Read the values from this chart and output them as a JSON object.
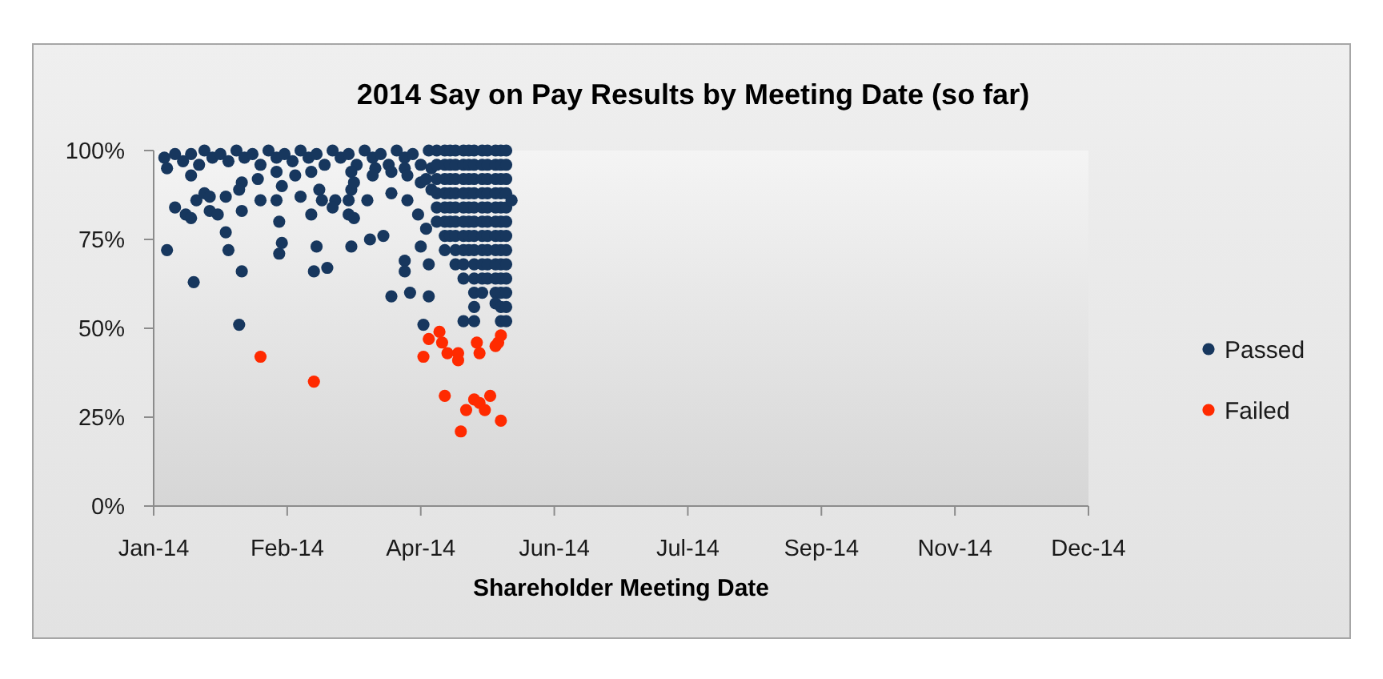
{
  "chart_data": {
    "type": "scatter",
    "title": "2014 Say on Pay Results by Meeting Date (so far)",
    "xlabel": "Shareholder Meeting Date",
    "xlim": [
      "2014-01-06",
      "2014-12-22"
    ],
    "xticks": [
      {
        "value": "2014-01-06",
        "label": "Jan-14"
      },
      {
        "value": "2014-02-25",
        "label": "Feb-14"
      },
      {
        "value": "2014-04-16",
        "label": "Apr-14"
      },
      {
        "value": "2014-06-05",
        "label": "Jun-14"
      },
      {
        "value": "2014-07-25",
        "label": "Jul-14"
      },
      {
        "value": "2014-09-13",
        "label": "Sep-14"
      },
      {
        "value": "2014-11-02",
        "label": "Nov-14"
      },
      {
        "value": "2014-12-22",
        "label": "Dec-14"
      }
    ],
    "ylim": [
      0,
      100
    ],
    "yticks": [
      {
        "value": 0,
        "label": "0%"
      },
      {
        "value": 25,
        "label": "25%"
      },
      {
        "value": 50,
        "label": "50%"
      },
      {
        "value": 75,
        "label": "75%"
      },
      {
        "value": 100,
        "label": "100%"
      }
    ],
    "legend": "right",
    "marker": "circle",
    "series": [
      {
        "name": "Passed",
        "color": "#17375e",
        "x": [
          "2014-01-10",
          "2014-01-11",
          "2014-01-14",
          "2014-01-17",
          "2014-01-20",
          "2014-01-23",
          "2014-01-25",
          "2014-01-28",
          "2014-01-31",
          "2014-02-03",
          "2014-02-06",
          "2014-02-09",
          "2014-02-12",
          "2014-02-15",
          "2014-02-18",
          "2014-02-21",
          "2014-02-24",
          "2014-02-27",
          "2014-03-02",
          "2014-03-05",
          "2014-03-08",
          "2014-03-11",
          "2014-03-14",
          "2014-03-17",
          "2014-03-20",
          "2014-03-23",
          "2014-03-26",
          "2014-03-29",
          "2014-04-01",
          "2014-04-04",
          "2014-04-07",
          "2014-04-10",
          "2014-04-13",
          "2014-04-16",
          "2014-04-19",
          "2014-02-21",
          "2014-02-28",
          "2014-03-06",
          "2014-03-21",
          "2014-03-30",
          "2014-04-10",
          "2014-01-20",
          "2014-01-14",
          "2014-01-22",
          "2014-01-25",
          "2014-01-27",
          "2014-01-18",
          "2014-01-20",
          "2014-01-27",
          "2014-01-30",
          "2014-02-02",
          "2014-02-08",
          "2014-02-15",
          "2014-02-08",
          "2014-02-14",
          "2014-02-07",
          "2014-02-21",
          "2014-02-23",
          "2014-02-22",
          "2014-02-02",
          "2014-01-11",
          "2014-02-03",
          "2014-02-22",
          "2014-02-23",
          "2014-02-08",
          "2014-01-21",
          "2014-02-07",
          "2014-03-02",
          "2014-03-09",
          "2014-03-10",
          "2014-03-15",
          "2014-03-14",
          "2014-03-21",
          "2014-03-22",
          "2014-03-20",
          "2014-03-27",
          "2014-04-05",
          "2014-03-06",
          "2014-03-20",
          "2014-03-22",
          "2014-03-08",
          "2014-03-21",
          "2014-03-28",
          "2014-04-02",
          "2014-03-07",
          "2014-03-12",
          "2014-04-10",
          "2014-04-10",
          "2014-04-05",
          "2014-04-12",
          "2014-03-29",
          "2014-04-05",
          "2014-04-11",
          "2014-04-16",
          "2014-04-11",
          "2014-04-15",
          "2014-04-18",
          "2014-04-16",
          "2014-04-19",
          "2014-04-19",
          "2014-04-17",
          "2014-04-18",
          "2014-04-20",
          "2014-04-20",
          "2014-04-22",
          "2014-04-22",
          "2014-04-22",
          "2014-04-22",
          "2014-04-22",
          "2014-04-22",
          "2014-04-25",
          "2014-04-25",
          "2014-04-25",
          "2014-04-25",
          "2014-04-25",
          "2014-04-25",
          "2014-04-25",
          "2014-04-25",
          "2014-04-27",
          "2014-04-27",
          "2014-04-27",
          "2014-04-27",
          "2014-04-27",
          "2014-04-27",
          "2014-04-27",
          "2014-04-29",
          "2014-04-29",
          "2014-04-29",
          "2014-04-29",
          "2014-04-29",
          "2014-04-29",
          "2014-04-29",
          "2014-04-29",
          "2014-04-29",
          "2014-05-02",
          "2014-05-02",
          "2014-05-02",
          "2014-05-02",
          "2014-05-02",
          "2014-05-02",
          "2014-05-02",
          "2014-05-02",
          "2014-05-02",
          "2014-05-02",
          "2014-05-02",
          "2014-05-04",
          "2014-05-04",
          "2014-05-04",
          "2014-05-04",
          "2014-05-04",
          "2014-05-04",
          "2014-05-04",
          "2014-05-04",
          "2014-05-06",
          "2014-05-06",
          "2014-05-06",
          "2014-05-06",
          "2014-05-06",
          "2014-05-06",
          "2014-05-06",
          "2014-05-06",
          "2014-05-06",
          "2014-05-06",
          "2014-05-06",
          "2014-05-06",
          "2014-05-06",
          "2014-05-09",
          "2014-05-09",
          "2014-05-09",
          "2014-05-09",
          "2014-05-09",
          "2014-05-09",
          "2014-05-09",
          "2014-05-09",
          "2014-05-09",
          "2014-05-09",
          "2014-05-09",
          "2014-05-11",
          "2014-05-11",
          "2014-05-11",
          "2014-05-11",
          "2014-05-11",
          "2014-05-11",
          "2014-05-11",
          "2014-05-11",
          "2014-05-11",
          "2014-05-11",
          "2014-05-14",
          "2014-05-14",
          "2014-05-14",
          "2014-05-14",
          "2014-05-14",
          "2014-05-14",
          "2014-05-14",
          "2014-05-14",
          "2014-05-14",
          "2014-05-14",
          "2014-05-14",
          "2014-05-14",
          "2014-05-16",
          "2014-05-16",
          "2014-05-16",
          "2014-05-16",
          "2014-05-16",
          "2014-05-16",
          "2014-05-16",
          "2014-05-16",
          "2014-05-16",
          "2014-05-16",
          "2014-05-16",
          "2014-05-16",
          "2014-05-16",
          "2014-05-18",
          "2014-05-18",
          "2014-05-18",
          "2014-05-18",
          "2014-05-18",
          "2014-05-18",
          "2014-05-18",
          "2014-05-18",
          "2014-05-18",
          "2014-05-18",
          "2014-05-18",
          "2014-05-18",
          "2014-05-18",
          "2014-05-20"
        ],
        "values": [
          98,
          95,
          99,
          97,
          99,
          96,
          100,
          98,
          99,
          97,
          100,
          98,
          99,
          96,
          100,
          98,
          99,
          97,
          100,
          98,
          99,
          96,
          100,
          98,
          99,
          96,
          100,
          98,
          99,
          96,
          100,
          98,
          99,
          96,
          100,
          94,
          93,
          94,
          94,
          95,
          95,
          93,
          84,
          86,
          88,
          87,
          82,
          81,
          83,
          82,
          87,
          83,
          86,
          91,
          92,
          89,
          86,
          90,
          80,
          77,
          72,
          72,
          71,
          74,
          66,
          63,
          51,
          87,
          89,
          86,
          86,
          84,
          89,
          91,
          86,
          86,
          88,
          82,
          82,
          81,
          73,
          73,
          75,
          76,
          66,
          67,
          69,
          66,
          59,
          60,
          93,
          94,
          93,
          91,
          86,
          82,
          78,
          73,
          68,
          59,
          51,
          92,
          95,
          89,
          100,
          96,
          92,
          88,
          84,
          80,
          100,
          96,
          92,
          88,
          84,
          80,
          76,
          72,
          100,
          96,
          92,
          88,
          84,
          80,
          76,
          100,
          96,
          92,
          88,
          84,
          80,
          76,
          72,
          68,
          100,
          96,
          92,
          88,
          84,
          80,
          76,
          72,
          68,
          64,
          52,
          100,
          96,
          92,
          88,
          84,
          80,
          76,
          72,
          100,
          96,
          92,
          88,
          84,
          80,
          76,
          72,
          68,
          64,
          60,
          56,
          52,
          100,
          96,
          92,
          88,
          84,
          80,
          76,
          72,
          68,
          64,
          60,
          100,
          96,
          92,
          88,
          84,
          80,
          76,
          72,
          68,
          64,
          100,
          96,
          92,
          88,
          84,
          80,
          76,
          72,
          68,
          64,
          60,
          57,
          100,
          96,
          92,
          88,
          84,
          80,
          76,
          72,
          68,
          64,
          60,
          56,
          52,
          100,
          96,
          92,
          88,
          84,
          80,
          76,
          72,
          68,
          64,
          60,
          56,
          52,
          86
        ]
      },
      {
        "name": "Failed",
        "color": "#ff2a00",
        "x": [
          "2014-02-15",
          "2014-03-07",
          "2014-04-23",
          "2014-04-19",
          "2014-04-17",
          "2014-04-24",
          "2014-04-26",
          "2014-04-30",
          "2014-04-30",
          "2014-05-07",
          "2014-05-08",
          "2014-05-14",
          "2014-05-15",
          "2014-05-16",
          "2014-04-25",
          "2014-05-03",
          "2014-05-06",
          "2014-05-08",
          "2014-05-10",
          "2014-05-12",
          "2014-05-16",
          "2014-05-01"
        ],
        "values": [
          42,
          35,
          49,
          47,
          42,
          46,
          43,
          43,
          41,
          46,
          43,
          45,
          46,
          48,
          31,
          27,
          30,
          29,
          27,
          31,
          24,
          21
        ]
      }
    ]
  }
}
